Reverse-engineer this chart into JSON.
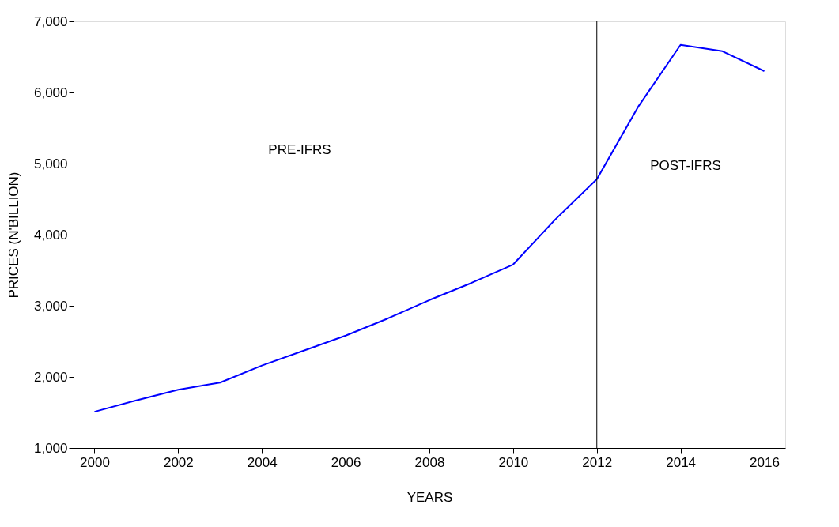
{
  "chart_data": {
    "type": "line",
    "xlabel": "YEARS",
    "ylabel": "PRICES (N'BILLION)",
    "x": [
      2000,
      2001,
      2002,
      2003,
      2004,
      2005,
      2006,
      2007,
      2008,
      2009,
      2010,
      2011,
      2012,
      2013,
      2014,
      2015,
      2016
    ],
    "series": [
      {
        "color": "#0000ff",
        "values": [
          1510,
          1670,
          1820,
          1920,
          2160,
          2370,
          2580,
          2820,
          3080,
          3320,
          3580,
          4210,
          4780,
          5810,
          6670,
          6580,
          6300
        ]
      }
    ],
    "xlim": [
      1999.5,
      2016.5
    ],
    "xticks": [
      2000,
      2002,
      2004,
      2006,
      2008,
      2010,
      2012,
      2014,
      2016
    ],
    "ylim": [
      1000,
      7000
    ],
    "yticks": [
      {
        "value": 1000,
        "label": "1,000"
      },
      {
        "value": 2000,
        "label": "2,000"
      },
      {
        "value": 3000,
        "label": "3,000"
      },
      {
        "value": 4000,
        "label": "4,000"
      },
      {
        "value": 5000,
        "label": "5,000"
      },
      {
        "value": 6000,
        "label": "6,000"
      },
      {
        "value": 7000,
        "label": "7,000"
      }
    ],
    "ref_lines": [
      {
        "axis": "x",
        "value": 2012,
        "color": "#000000"
      }
    ],
    "annotations": [
      "PRE-IFRS",
      "POST-IFRS"
    ],
    "grid": false,
    "legend": false,
    "marker": "none",
    "line_style": "solid"
  }
}
